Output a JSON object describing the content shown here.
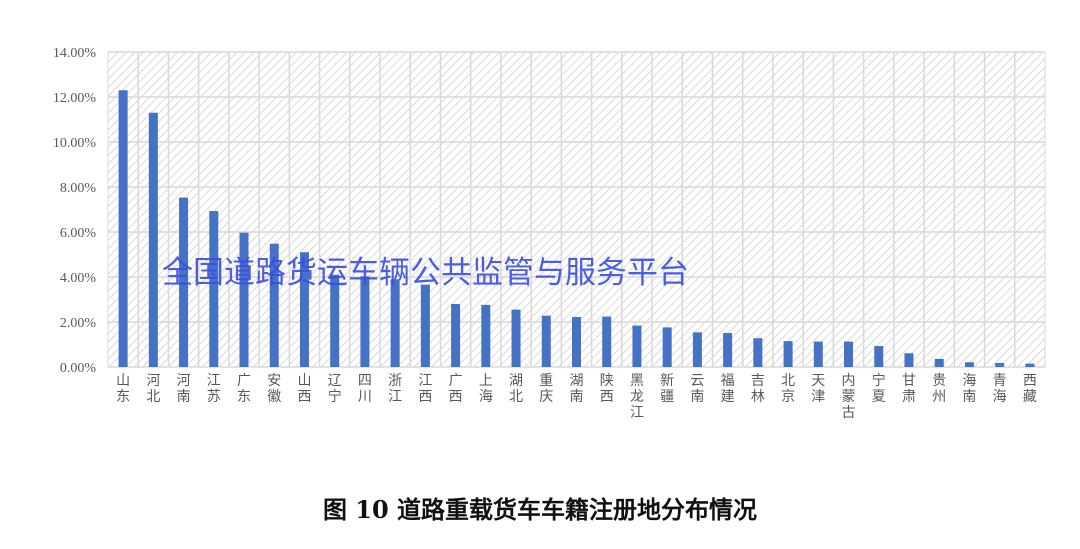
{
  "chart_data": {
    "type": "bar",
    "title": "图 10 道路重载货车车籍注册地分布情况",
    "xlabel": "",
    "ylabel": "",
    "ylim": [
      0,
      14
    ],
    "ytick_labels": [
      "0.00%",
      "2.00%",
      "4.00%",
      "6.00%",
      "8.00%",
      "10.00%",
      "12.00%",
      "14.00%"
    ],
    "grid": true,
    "categories": [
      "山东",
      "河北",
      "河南",
      "江苏",
      "广东",
      "安徽",
      "山西",
      "辽宁",
      "四川",
      "浙江",
      "江西",
      "广西",
      "上海",
      "湖北",
      "重庆",
      "湖南",
      "陕西",
      "黑龙江",
      "新疆",
      "云南",
      "福建",
      "吉林",
      "北京",
      "天津",
      "内蒙古",
      "宁夏",
      "甘肃",
      "贵州",
      "海南",
      "青海",
      "西藏"
    ],
    "values": [
      12.3,
      11.3,
      7.53,
      6.93,
      5.97,
      5.48,
      5.1,
      4.1,
      4.03,
      3.9,
      3.66,
      2.8,
      2.76,
      2.55,
      2.28,
      2.22,
      2.24,
      1.84,
      1.76,
      1.54,
      1.51,
      1.28,
      1.15,
      1.13,
      1.13,
      0.93,
      0.61,
      0.36,
      0.21,
      0.18,
      0.15
    ],
    "unit": "%",
    "bar_color": "#4472c4"
  },
  "watermark": "全国道路货运车辆公共监管与服务平台",
  "caption": "图 10 道路重载货车车籍注册地分布情况"
}
